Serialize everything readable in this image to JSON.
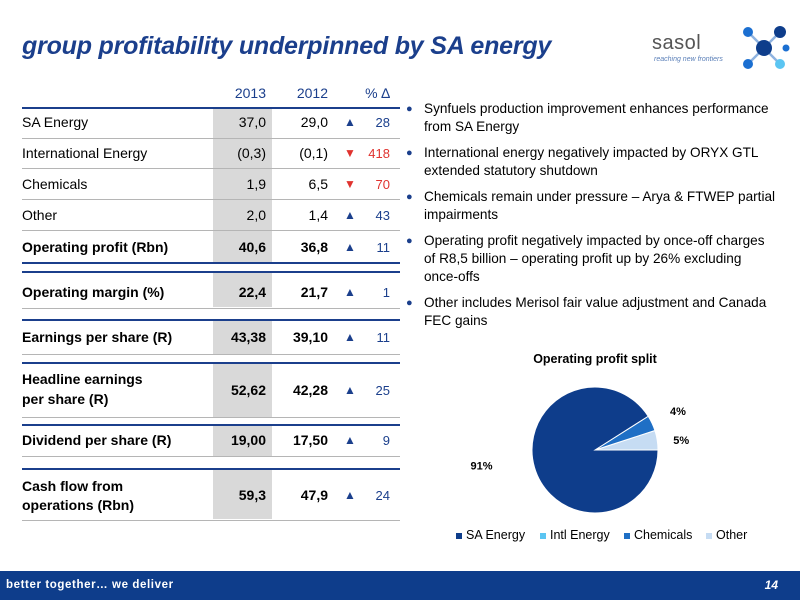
{
  "title": "group profitability underpinned by SA energy",
  "logo": {
    "brand": "sasol",
    "tagline": "reaching new frontiers",
    "accent": "#1b6fd1"
  },
  "table": {
    "headers": {
      "y2013": "2013",
      "y2012": "2012",
      "pct": "% ∆"
    },
    "rows": [
      {
        "label": "SA Energy",
        "v2013": "37,0",
        "v2012": "29,0",
        "dir": "up",
        "arrow": "▲",
        "pct": "28"
      },
      {
        "label": "International Energy",
        "v2013": "(0,3)",
        "v2012": "(0,1)",
        "dir": "down",
        "arrow": "▼",
        "pct": "418"
      },
      {
        "label": "Chemicals",
        "v2013": "1,9",
        "v2012": "6,5",
        "dir": "down",
        "arrow": "▼",
        "pct": "70"
      },
      {
        "label": "Other",
        "v2013": "2,0",
        "v2012": "1,4",
        "dir": "up",
        "arrow": "▲",
        "pct": "43"
      },
      {
        "label": "Operating profit (Rbn)",
        "v2013": "40,6",
        "v2012": "36,8",
        "dir": "up",
        "arrow": "▲",
        "pct": "11"
      },
      {
        "label": "Operating margin (%)",
        "v2013": "22,4",
        "v2012": "21,7",
        "dir": "up",
        "arrow": "▲",
        "pct": "1"
      },
      {
        "label": "Earnings per share (R)",
        "v2013": "43,38",
        "v2012": "39,10",
        "dir": "up",
        "arrow": "▲",
        "pct": "11"
      },
      {
        "label_line1": "Headline earnings",
        "label_line2": "per share (R)",
        "v2013": "52,62",
        "v2012": "42,28",
        "dir": "up",
        "arrow": "▲",
        "pct": "25"
      },
      {
        "label": "Dividend per share (R)",
        "v2013": "19,00",
        "v2012": "17,50",
        "dir": "up",
        "arrow": "▲",
        "pct": "9"
      },
      {
        "label_line1": "Cash flow from",
        "label_line2": "operations (Rbn)",
        "v2013": "59,3",
        "v2012": "47,9",
        "dir": "up",
        "arrow": "▲",
        "pct": "24"
      }
    ]
  },
  "bullets": [
    "Synfuels production improvement enhances performance from SA Energy",
    "International energy negatively impacted by ORYX GTL extended statutory shutdown",
    "Chemicals remain under pressure – Arya & FTWEP partial impairments",
    "Operating profit negatively impacted by once-off charges of R8,5 billion – operating profit up by 26% excluding once-offs",
    "Other includes Merisol fair value adjustment and Canada FEC gains"
  ],
  "bullet_glyph": "●",
  "chart_data": {
    "type": "pie",
    "title": "Operating profit split",
    "categories": [
      "SA Energy",
      "Intl Energy",
      "Chemicals",
      "Other"
    ],
    "values": [
      91,
      0,
      4,
      5
    ],
    "labels": [
      "91%",
      "",
      "4%",
      "5%"
    ],
    "colors": [
      "#0e3d8b",
      "#5bc5f2",
      "#1f6fc5",
      "#c6dcf3"
    ],
    "legend_position": "bottom"
  },
  "footer": {
    "text": "better together… we deliver",
    "page": "14"
  }
}
